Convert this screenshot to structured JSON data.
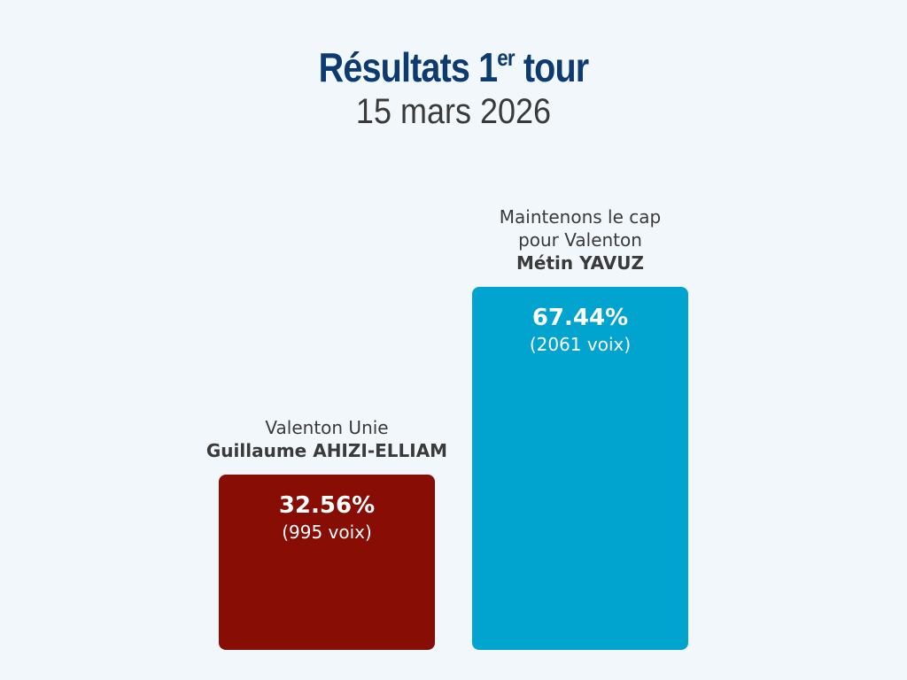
{
  "header": {
    "title_main": "Résultats 1",
    "title_sup": "er",
    "title_end": " tour",
    "subtitle": "15 mars 2026"
  },
  "chart_data": {
    "type": "bar",
    "title": "Résultats 1er tour",
    "subtitle": "15 mars 2026",
    "ylim": [
      0,
      70
    ],
    "bars": [
      {
        "list": "Valenton Unie",
        "candidate": "Guillaume AHIZI-ELLIAM",
        "percent": 32.56,
        "percent_label": "32.56%",
        "votes_label": "(995 voix)",
        "votes": 995,
        "color": "#870d05"
      },
      {
        "list_lines": [
          "Maintenons le cap",
          "pour Valenton"
        ],
        "candidate": "Métin YAVUZ",
        "percent": 67.44,
        "percent_label": "67.44%",
        "votes_label": "(2061 voix)",
        "votes": 2061,
        "color": "#00a4cf"
      }
    ]
  }
}
